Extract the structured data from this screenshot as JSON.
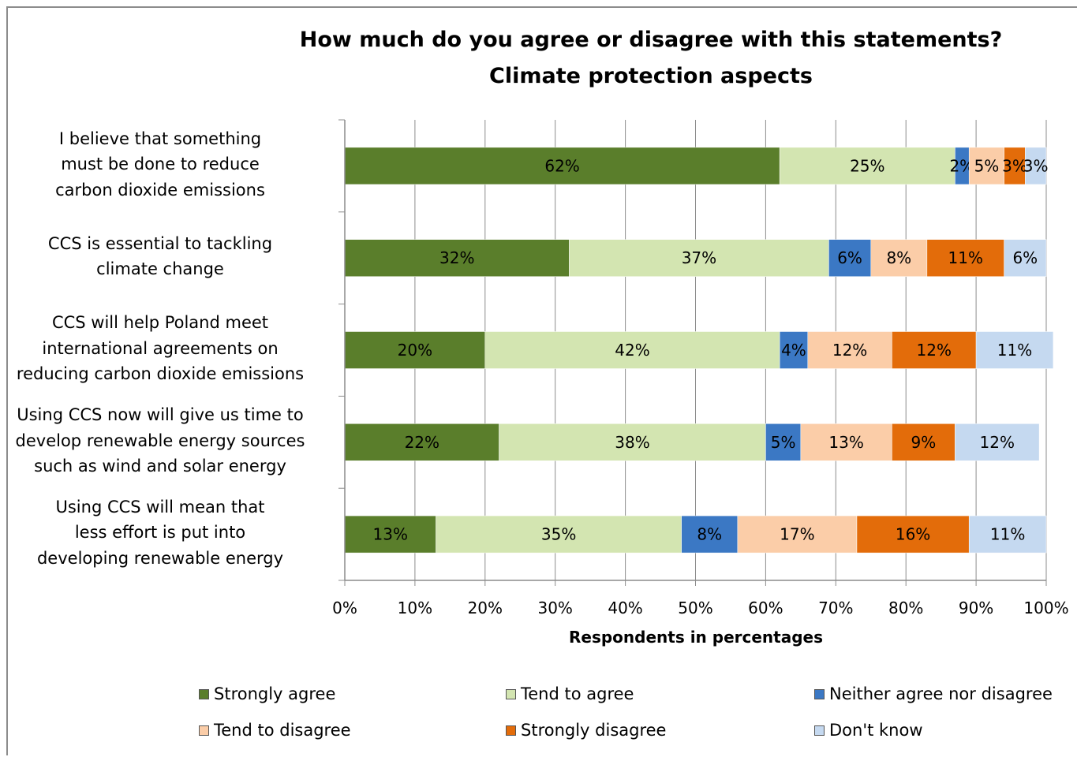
{
  "chart_data": {
    "type": "bar",
    "orientation": "horizontal",
    "stacked": "percent",
    "title": [
      "How much do you agree or disagree with this statements?",
      "Climate protection aspects"
    ],
    "xlabel": "Respondents in percentages",
    "xlim": [
      0,
      100
    ],
    "x_ticks": [
      "0%",
      "10%",
      "20%",
      "30%",
      "40%",
      "50%",
      "60%",
      "70%",
      "80%",
      "90%",
      "100%"
    ],
    "categories": [
      [
        "I believe that something",
        "must be done to reduce",
        "carbon dioxide emissions"
      ],
      [
        "CCS is essential to tackling",
        "climate change"
      ],
      [
        "CCS will help Poland meet",
        "international agreements on",
        "reducing carbon dioxide emissions"
      ],
      [
        "Using CCS now will give us time to",
        "develop renewable energy sources",
        "such as wind and solar energy"
      ],
      [
        "Using CCS will mean that",
        "less effort is put into",
        "developing  renewable energy"
      ]
    ],
    "series": [
      {
        "name": "Strongly agree",
        "color": "#5a7e2b",
        "values": [
          62,
          32,
          20,
          22,
          13
        ]
      },
      {
        "name": "Tend to agree",
        "color": "#d3e5b1",
        "values": [
          25,
          37,
          42,
          38,
          35
        ]
      },
      {
        "name": "Neither agree nor disagree",
        "color": "#3b78c4",
        "values": [
          2,
          6,
          4,
          5,
          8
        ]
      },
      {
        "name": "Tend to disagree",
        "color": "#fbcda8",
        "values": [
          5,
          8,
          12,
          13,
          17
        ]
      },
      {
        "name": "Strongly disagree",
        "color": "#e36c0a",
        "values": [
          3,
          11,
          12,
          9,
          16
        ]
      },
      {
        "name": "Don't know",
        "color": "#c5d9f0",
        "values": [
          3,
          6,
          11,
          12,
          11
        ]
      }
    ],
    "legend_position": "bottom",
    "grid": true
  }
}
